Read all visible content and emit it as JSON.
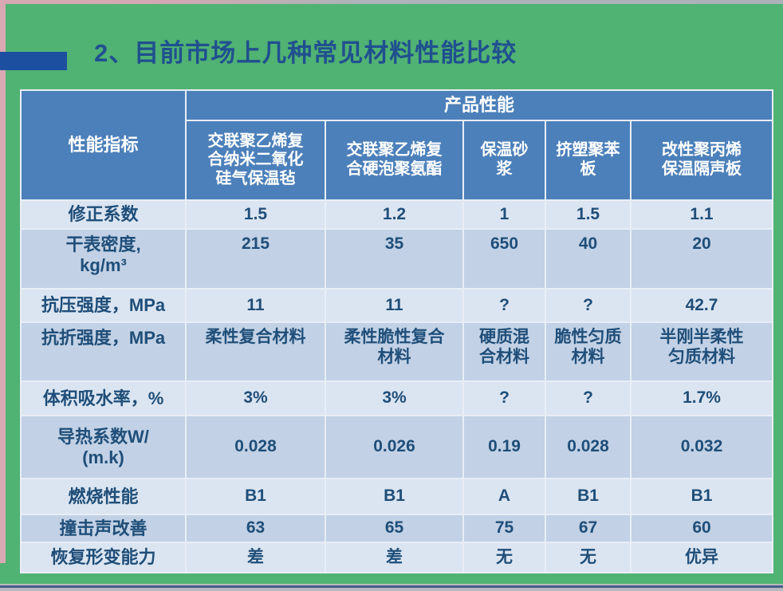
{
  "slide": {
    "title": "2、目前市场上几种常见材料性能比较"
  },
  "table": {
    "corner_header": "性能指标",
    "group_header": "产品性能",
    "columns": [
      "交联聚乙烯复\n合纳米二氧化\n硅气保温毡",
      "交联聚乙烯复\n合硬泡聚氨酯",
      "保温砂\n浆",
      "挤塑聚苯\n板",
      "改性聚丙烯\n保温隔声板"
    ],
    "rows": [
      {
        "label": "修正系数",
        "values": [
          "1.5",
          "1.2",
          "1",
          "1.5",
          "1.1"
        ]
      },
      {
        "label": "干表密度,\nkg/m³",
        "values": [
          "215",
          "35",
          "650",
          "40",
          "20"
        ]
      },
      {
        "label": "抗压强度，MPa",
        "values": [
          "11",
          "11",
          "?",
          "?",
          "42.7"
        ]
      },
      {
        "label": "抗折强度，MPa",
        "values": [
          "柔性复合材料",
          "柔性脆性复合\n材料",
          "硬质混\n合材料",
          "脆性匀质\n材料",
          "半刚半柔性\n匀质材料"
        ]
      },
      {
        "label": "体积吸水率，%",
        "values": [
          "3%",
          "3%",
          "?",
          "?",
          "1.7%"
        ]
      },
      {
        "label": "导热系数W/\n(m.k)",
        "values": [
          "0.028",
          "0.026",
          "0.19",
          "0.028",
          "0.032"
        ]
      },
      {
        "label": "燃烧性能",
        "values": [
          "B1",
          "B1",
          "A",
          "B1",
          "B1"
        ]
      },
      {
        "label": "撞击声改善",
        "values": [
          "63",
          "65",
          "75",
          "67",
          "60"
        ]
      },
      {
        "label": "恢复形变能力",
        "values": [
          "差",
          "差",
          "无",
          "无",
          "优异"
        ]
      }
    ]
  },
  "colors": {
    "slide_background": "#50B273",
    "header_background": "#4C80BA",
    "row_light": "#DBE5F1",
    "row_dark": "#C2D1E5",
    "cell_text": "#1F4E79",
    "title_text": "#20508F",
    "accent_bar": "#1D4FA0",
    "edge_pink": "#D8A9B3",
    "edge_gray": "#B6BABC"
  }
}
